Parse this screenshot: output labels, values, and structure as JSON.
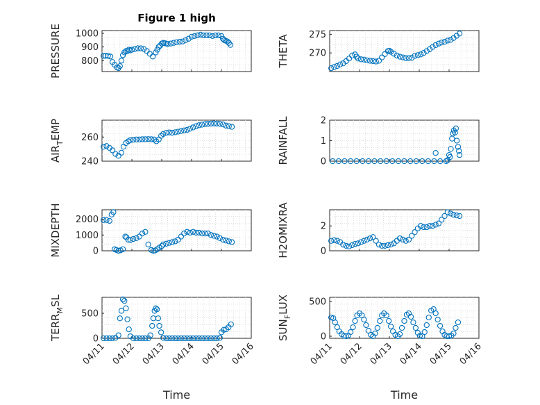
{
  "figure": {
    "title": "Figure 1 high",
    "xlabel": "Time"
  },
  "chart_data": [
    {
      "type": "scatter",
      "ylabel": "PRESSURE",
      "ylabel_sub": "",
      "ylabel_tail": "",
      "title": "Figure 1 high",
      "xlim": [
        0,
        5
      ],
      "ylim": [
        720,
        1020
      ],
      "yticks": [
        800,
        900,
        1000
      ],
      "xticks": [
        "04/11",
        "04/12",
        "04/13",
        "04/14",
        "04/15",
        "04/16"
      ],
      "x": [
        0.05,
        0.12,
        0.2,
        0.28,
        0.35,
        0.42,
        0.5,
        0.55,
        0.6,
        0.65,
        0.7,
        0.75,
        0.8,
        0.85,
        0.9,
        0.95,
        1.0,
        1.1,
        1.2,
        1.3,
        1.4,
        1.5,
        1.6,
        1.7,
        1.8,
        1.85,
        1.9,
        1.95,
        2.0,
        2.05,
        2.1,
        2.15,
        2.2,
        2.3,
        2.4,
        2.5,
        2.6,
        2.7,
        2.8,
        2.9,
        3.0,
        3.1,
        3.2,
        3.3,
        3.4,
        3.5,
        3.6,
        3.7,
        3.8,
        3.9,
        4.0,
        4.05,
        4.1,
        4.15,
        4.2,
        4.25,
        4.3
      ],
      "y": [
        835,
        835,
        835,
        830,
        790,
        770,
        750,
        745,
        760,
        800,
        840,
        860,
        870,
        870,
        880,
        875,
        880,
        885,
        890,
        890,
        885,
        870,
        850,
        830,
        860,
        880,
        900,
        910,
        925,
        930,
        928,
        925,
        922,
        925,
        930,
        935,
        938,
        940,
        950,
        960,
        975,
        980,
        985,
        990,
        985,
        985,
        985,
        980,
        985,
        985,
        980,
        960,
        950,
        945,
        940,
        930,
        915
      ]
    },
    {
      "type": "scatter",
      "ylabel": "THETA",
      "ylabel_sub": "",
      "ylabel_tail": "",
      "xlim": [
        0,
        5
      ],
      "ylim": [
        265,
        276
      ],
      "yticks": [
        270,
        275
      ],
      "xticks": [
        "04/11",
        "04/12",
        "04/13",
        "04/14",
        "04/15",
        "04/16"
      ],
      "x": [
        0.05,
        0.15,
        0.25,
        0.35,
        0.45,
        0.55,
        0.65,
        0.75,
        0.85,
        0.9,
        0.95,
        1.05,
        1.15,
        1.25,
        1.35,
        1.45,
        1.55,
        1.65,
        1.75,
        1.85,
        1.95,
        2.0,
        2.05,
        2.15,
        2.25,
        2.35,
        2.45,
        2.55,
        2.65,
        2.75,
        2.85,
        2.95,
        3.05,
        3.15,
        3.25,
        3.35,
        3.45,
        3.55,
        3.65,
        3.75,
        3.85,
        3.95,
        4.05,
        4.15,
        4.25,
        4.35
      ],
      "y": [
        265.9,
        266.2,
        266.5,
        266.9,
        267.2,
        267.8,
        268.5,
        269.3,
        269.6,
        269.0,
        268.5,
        268.3,
        268.2,
        268.0,
        267.9,
        267.8,
        267.7,
        267.9,
        268.8,
        269.7,
        270.5,
        270.6,
        270.3,
        269.8,
        269.3,
        269.0,
        268.8,
        268.6,
        268.6,
        268.7,
        269.2,
        269.4,
        269.6,
        270.0,
        270.5,
        271.0,
        271.6,
        272.1,
        272.5,
        272.8,
        273.0,
        273.3,
        273.5,
        274.0,
        274.6,
        275.2
      ]
    },
    {
      "type": "scatter",
      "ylabel": "AIR",
      "ylabel_sub": "T",
      "ylabel_tail": "EMP",
      "xlim": [
        0,
        5
      ],
      "ylim": [
        240,
        274
      ],
      "yticks": [
        240,
        260
      ],
      "xticks": [
        "04/11",
        "04/12",
        "04/13",
        "04/14",
        "04/15",
        "04/16"
      ],
      "x": [
        0.05,
        0.15,
        0.25,
        0.35,
        0.45,
        0.55,
        0.65,
        0.72,
        0.8,
        0.88,
        0.95,
        1.05,
        1.15,
        1.25,
        1.35,
        1.45,
        1.55,
        1.65,
        1.75,
        1.82,
        1.9,
        1.98,
        2.05,
        2.15,
        2.25,
        2.35,
        2.45,
        2.55,
        2.65,
        2.75,
        2.85,
        2.95,
        3.05,
        3.15,
        3.25,
        3.35,
        3.45,
        3.55,
        3.65,
        3.75,
        3.85,
        3.95,
        4.05,
        4.15,
        4.25,
        4.35
      ],
      "y": [
        252,
        252.5,
        251,
        249,
        246,
        244.5,
        247,
        252,
        255,
        256.5,
        257.5,
        257.8,
        258,
        258,
        258.2,
        258.2,
        258.3,
        258.2,
        258,
        256.5,
        258,
        261,
        262.5,
        263.5,
        263.8,
        263.6,
        264,
        264.5,
        265,
        265.5,
        266,
        267,
        268,
        269,
        269.8,
        270.3,
        270.8,
        271,
        271.2,
        271.3,
        271.2,
        271,
        270.5,
        269.5,
        269,
        268.5
      ]
    },
    {
      "type": "scatter",
      "ylabel": "RAINFALL",
      "ylabel_sub": "",
      "ylabel_tail": "",
      "xlim": [
        0,
        5
      ],
      "ylim": [
        0,
        2
      ],
      "yticks": [
        0,
        1,
        2
      ],
      "xticks": [
        "04/11",
        "04/12",
        "04/13",
        "04/14",
        "04/15",
        "04/16"
      ],
      "x": [
        0.1,
        0.3,
        0.5,
        0.7,
        0.9,
        1.1,
        1.3,
        1.5,
        1.7,
        1.9,
        2.1,
        2.3,
        2.5,
        2.7,
        2.9,
        3.1,
        3.3,
        3.5,
        3.55,
        3.7,
        3.9,
        3.95,
        4.0,
        4.03,
        4.06,
        4.1,
        4.13,
        4.16,
        4.2,
        4.23,
        4.26,
        4.3,
        4.33,
        4.35
      ],
      "y": [
        0,
        0,
        0,
        0,
        0,
        0,
        0,
        0,
        0,
        0,
        0,
        0,
        0,
        0,
        0,
        0,
        0,
        0,
        0.4,
        0,
        0,
        0.05,
        0.3,
        0.2,
        0.6,
        1.1,
        1.35,
        1.5,
        1.4,
        1.6,
        1.0,
        0.7,
        0.5,
        0.3
      ]
    },
    {
      "type": "scatter",
      "ylabel": "MIXDEPTH",
      "ylabel_sub": "",
      "ylabel_tail": "",
      "xlim": [
        0,
        5
      ],
      "ylim": [
        0,
        2600
      ],
      "yticks": [
        0,
        1000,
        2000
      ],
      "xticks": [
        "04/11",
        "04/12",
        "04/13",
        "04/14",
        "04/15",
        "04/16"
      ],
      "x": [
        0.05,
        0.15,
        0.25,
        0.32,
        0.38,
        0.42,
        0.48,
        0.55,
        0.62,
        0.7,
        0.78,
        0.82,
        0.88,
        0.95,
        1.05,
        1.15,
        1.25,
        1.35,
        1.45,
        1.55,
        1.65,
        1.72,
        1.78,
        1.85,
        1.92,
        2.0,
        2.05,
        2.15,
        2.25,
        2.35,
        2.45,
        2.55,
        2.65,
        2.75,
        2.85,
        2.95,
        3.05,
        3.15,
        3.25,
        3.35,
        3.45,
        3.55,
        3.65,
        3.75,
        3.85,
        3.95,
        4.05,
        4.15,
        4.25,
        4.35
      ],
      "y": [
        1950,
        1950,
        1900,
        2300,
        2450,
        100,
        50,
        0,
        30,
        100,
        900,
        850,
        700,
        680,
        750,
        800,
        900,
        1100,
        1200,
        400,
        50,
        0,
        20,
        100,
        200,
        300,
        400,
        450,
        500,
        550,
        600,
        700,
        900,
        1100,
        1200,
        1150,
        1200,
        1150,
        1150,
        1100,
        1100,
        1100,
        1000,
        950,
        900,
        800,
        700,
        650,
        600,
        550
      ]
    },
    {
      "type": "scatter",
      "ylabel": "H2OMIXRA",
      "ylabel_sub": "",
      "ylabel_tail": "",
      "xlim": [
        0,
        5
      ],
      "ylim": [
        0,
        3.3
      ],
      "yticks": [
        0,
        2
      ],
      "xticks": [
        "04/11",
        "04/12",
        "04/13",
        "04/14",
        "04/15",
        "04/16"
      ],
      "x": [
        0.05,
        0.15,
        0.25,
        0.35,
        0.45,
        0.55,
        0.65,
        0.75,
        0.85,
        0.95,
        1.05,
        1.15,
        1.25,
        1.35,
        1.45,
        1.55,
        1.65,
        1.75,
        1.85,
        1.95,
        2.05,
        2.15,
        2.25,
        2.35,
        2.45,
        2.55,
        2.65,
        2.75,
        2.85,
        2.95,
        3.05,
        3.15,
        3.25,
        3.35,
        3.45,
        3.55,
        3.65,
        3.75,
        3.85,
        3.95,
        4.05,
        4.15,
        4.25,
        4.35
      ],
      "y": [
        0.8,
        0.85,
        0.8,
        0.7,
        0.5,
        0.4,
        0.35,
        0.45,
        0.55,
        0.6,
        0.7,
        0.8,
        0.9,
        1.0,
        1.1,
        0.8,
        0.5,
        0.4,
        0.4,
        0.45,
        0.5,
        0.6,
        0.8,
        1.0,
        0.9,
        0.8,
        0.9,
        1.2,
        1.5,
        1.8,
        2.0,
        1.9,
        1.9,
        2.0,
        2.0,
        2.1,
        2.2,
        2.5,
        2.8,
        3.1,
        3.0,
        2.9,
        2.85,
        2.8
      ]
    },
    {
      "type": "scatter",
      "ylabel": "TERR",
      "ylabel_sub": "M",
      "ylabel_tail": "SL",
      "xlim": [
        0,
        5
      ],
      "ylim": [
        0,
        820
      ],
      "yticks": [
        0,
        500
      ],
      "xticks": [
        "04/11",
        "04/12",
        "04/13",
        "04/14",
        "04/15",
        "04/16"
      ],
      "x": [
        0.05,
        0.15,
        0.25,
        0.35,
        0.45,
        0.55,
        0.6,
        0.65,
        0.7,
        0.75,
        0.8,
        0.85,
        0.9,
        0.95,
        1.05,
        1.15,
        1.25,
        1.35,
        1.45,
        1.55,
        1.62,
        1.68,
        1.72,
        1.76,
        1.8,
        1.84,
        1.88,
        1.92,
        1.98,
        2.05,
        2.15,
        2.25,
        2.35,
        2.45,
        2.55,
        2.65,
        2.75,
        2.85,
        2.95,
        3.05,
        3.15,
        3.25,
        3.35,
        3.45,
        3.55,
        3.65,
        3.75,
        3.85,
        3.95,
        4.0,
        4.08,
        4.16,
        4.24,
        4.32
      ],
      "y": [
        0,
        0,
        0,
        0,
        10,
        60,
        400,
        550,
        780,
        750,
        600,
        380,
        180,
        40,
        0,
        0,
        0,
        0,
        0,
        0,
        60,
        250,
        400,
        550,
        600,
        580,
        400,
        250,
        120,
        10,
        0,
        0,
        0,
        0,
        0,
        0,
        0,
        0,
        0,
        0,
        0,
        0,
        0,
        0,
        0,
        0,
        0,
        0,
        10,
        120,
        170,
        180,
        220,
        280
      ]
    },
    {
      "type": "scatter",
      "ylabel": "SUN",
      "ylabel_sub": "F",
      "ylabel_tail": "LUX",
      "xlim": [
        0,
        5
      ],
      "ylim": [
        -30,
        560
      ],
      "yticks": [
        0,
        500
      ],
      "xticks": [
        "04/11",
        "04/12",
        "04/13",
        "04/14",
        "04/15",
        "04/16"
      ],
      "x": [
        0.05,
        0.12,
        0.18,
        0.25,
        0.32,
        0.4,
        0.48,
        0.55,
        0.62,
        0.7,
        0.78,
        0.85,
        0.92,
        1.0,
        1.08,
        1.15,
        1.22,
        1.3,
        1.38,
        1.45,
        1.52,
        1.6,
        1.68,
        1.75,
        1.82,
        1.9,
        1.98,
        2.05,
        2.12,
        2.2,
        2.28,
        2.35,
        2.42,
        2.5,
        2.58,
        2.65,
        2.72,
        2.8,
        2.88,
        2.95,
        3.02,
        3.1,
        3.18,
        3.25,
        3.32,
        3.4,
        3.48,
        3.55,
        3.62,
        3.7,
        3.78,
        3.85,
        3.92,
        4.0,
        4.08,
        4.15,
        4.22,
        4.3
      ],
      "y": [
        270,
        260,
        200,
        130,
        70,
        30,
        5,
        0,
        10,
        60,
        130,
        220,
        300,
        330,
        300,
        240,
        160,
        80,
        20,
        0,
        40,
        120,
        220,
        300,
        330,
        300,
        220,
        140,
        70,
        20,
        0,
        30,
        120,
        220,
        310,
        330,
        280,
        200,
        120,
        50,
        5,
        0,
        60,
        160,
        270,
        370,
        390,
        330,
        240,
        150,
        70,
        20,
        0,
        0,
        10,
        40,
        120,
        200
      ]
    }
  ]
}
